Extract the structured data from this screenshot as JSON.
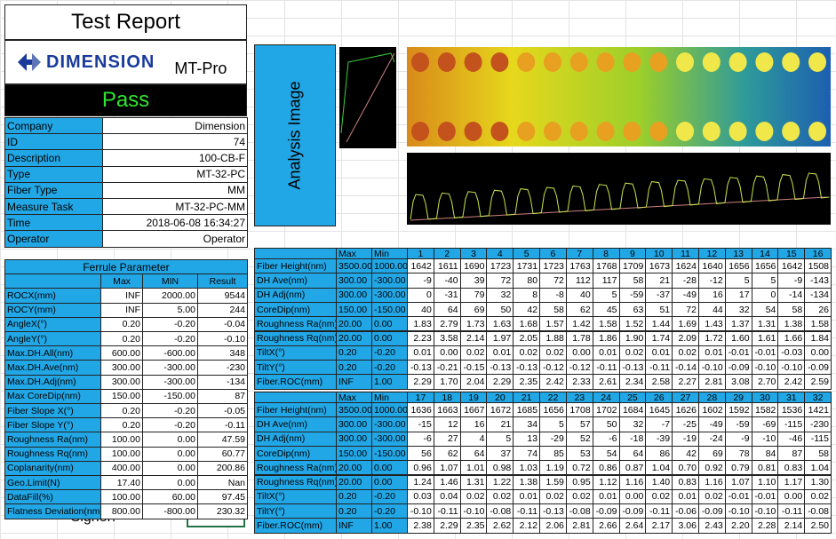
{
  "header": {
    "title": "Test Report",
    "logo": "DIMENSION",
    "model": "MT-Pro",
    "status": "Pass"
  },
  "info": [
    [
      "Company",
      "Dimension"
    ],
    [
      "ID",
      "74"
    ],
    [
      "Description",
      "100-CB-F"
    ],
    [
      "Type",
      "MT-32-PC"
    ],
    [
      "Fiber Type",
      "MM"
    ],
    [
      "Measure Task",
      "MT-32-PC-MM"
    ],
    [
      "Time",
      "2018-06-08 16:34:27"
    ],
    [
      "Operator",
      "Operator"
    ]
  ],
  "ferrule": {
    "title": "Ferrule Parameter",
    "columns": [
      "Max",
      "MIN",
      "Result"
    ],
    "rows": [
      [
        "ROCX(mm)",
        "INF",
        "2000.00",
        "9544"
      ],
      [
        "ROCY(mm)",
        "INF",
        "5.00",
        "244"
      ],
      [
        "AngleX(°)",
        "0.20",
        "-0.20",
        "-0.04"
      ],
      [
        "AngleY(°)",
        "0.20",
        "-0.20",
        "-0.10"
      ],
      [
        "Max.DH.All(nm)",
        "600.00",
        "-600.00",
        "348"
      ],
      [
        "Max.DH.Ave(nm)",
        "300.00",
        "-300.00",
        "-230"
      ],
      [
        "Max.DH.Adj(nm)",
        "300.00",
        "-300.00",
        "-134"
      ],
      [
        "Max CoreDip(nm)",
        "150.00",
        "-150.00",
        "87"
      ],
      [
        "Fiber Slope X(°)",
        "0.20",
        "-0.20",
        "-0.05"
      ],
      [
        "Fiber Slope Y(°)",
        "0.20",
        "-0.20",
        "-0.11"
      ],
      [
        "Roughness Ra(nm)",
        "100.00",
        "0.00",
        "47.59"
      ],
      [
        "Roughness Rq(nm)",
        "100.00",
        "0.00",
        "60.77"
      ],
      [
        "Coplanarity(nm)",
        "400.00",
        "0.00",
        "200.86"
      ],
      [
        "Geo.Limit(N)",
        "17.40",
        "0.00",
        "Nan"
      ],
      [
        "DataFill(%)",
        "100.00",
        "60.00",
        "97.45"
      ],
      [
        "Flatness Deviation(nm)",
        "800.00",
        "-800.00",
        "230.32"
      ]
    ]
  },
  "signer": "Signer:",
  "analysis": {
    "label": "Analysis Image"
  },
  "fiber_tables": [
    {
      "columns": [
        "Max",
        "Min",
        "1",
        "2",
        "3",
        "4",
        "5",
        "6",
        "7",
        "8",
        "9",
        "10",
        "11",
        "12",
        "13",
        "14",
        "15",
        "16"
      ],
      "rows": [
        [
          "Fiber Height(nm)",
          "3500.00",
          "1000.00",
          "1642",
          "1611",
          "1690",
          "1723",
          "1731",
          "1723",
          "1763",
          "1768",
          "1709",
          "1673",
          "1624",
          "1640",
          "1656",
          "1656",
          "1642",
          "1508"
        ],
        [
          "DH Ave(nm)",
          "300.00",
          "-300.00",
          "-9",
          "-40",
          "39",
          "72",
          "80",
          "72",
          "112",
          "117",
          "58",
          "21",
          "-28",
          "-12",
          "5",
          "5",
          "-9",
          "-143"
        ],
        [
          "DH Adj(nm)",
          "300.00",
          "-300.00",
          "0",
          "-31",
          "79",
          "32",
          "8",
          "-8",
          "40",
          "5",
          "-59",
          "-37",
          "-49",
          "16",
          "17",
          "0",
          "-14",
          "-134"
        ],
        [
          "CoreDip(nm)",
          "150.00",
          "-150.00",
          "40",
          "64",
          "69",
          "50",
          "42",
          "58",
          "62",
          "45",
          "63",
          "51",
          "72",
          "44",
          "32",
          "54",
          "58",
          "26"
        ],
        [
          "Roughness Ra(nm)",
          "20.00",
          "0.00",
          "1.83",
          "2.79",
          "1.73",
          "1.63",
          "1.68",
          "1.57",
          "1.42",
          "1.58",
          "1.52",
          "1.44",
          "1.69",
          "1.43",
          "1.37",
          "1.31",
          "1.38",
          "1.58"
        ],
        [
          "Roughness Rq(nm)",
          "20.00",
          "0.00",
          "2.23",
          "3.58",
          "2.14",
          "1.97",
          "2.05",
          "1.88",
          "1.78",
          "1.86",
          "1.90",
          "1.74",
          "2.09",
          "1.72",
          "1.60",
          "1.61",
          "1.66",
          "1.84"
        ],
        [
          "TiltX(°)",
          "0.20",
          "-0.20",
          "0.01",
          "0.00",
          "0.02",
          "0.01",
          "0.02",
          "0.02",
          "0.00",
          "0.01",
          "0.02",
          "0.01",
          "0.02",
          "0.01",
          "-0.01",
          "-0.01",
          "-0.03",
          "0.00"
        ],
        [
          "TiltY(°)",
          "0.20",
          "-0.20",
          "-0.13",
          "-0.21",
          "-0.15",
          "-0.13",
          "-0.13",
          "-0.12",
          "-0.12",
          "-0.11",
          "-0.13",
          "-0.11",
          "-0.14",
          "-0.10",
          "-0.09",
          "-0.10",
          "-0.10",
          "-0.09"
        ],
        [
          "Fiber.ROC(mm)",
          "INF",
          "1.00",
          "2.29",
          "1.70",
          "2.04",
          "2.29",
          "2.35",
          "2.42",
          "2.33",
          "2.61",
          "2.34",
          "2.58",
          "2.27",
          "2.81",
          "3.08",
          "2.70",
          "2.42",
          "2.59"
        ]
      ]
    },
    {
      "columns": [
        "Max",
        "Min",
        "17",
        "18",
        "19",
        "20",
        "21",
        "22",
        "23",
        "24",
        "25",
        "26",
        "27",
        "28",
        "29",
        "30",
        "31",
        "32"
      ],
      "rows": [
        [
          "Fiber Height(nm)",
          "3500.00",
          "1000.00",
          "1636",
          "1663",
          "1667",
          "1672",
          "1685",
          "1656",
          "1708",
          "1702",
          "1684",
          "1645",
          "1626",
          "1602",
          "1592",
          "1582",
          "1536",
          "1421"
        ],
        [
          "DH Ave(nm)",
          "300.00",
          "-300.00",
          "-15",
          "12",
          "16",
          "21",
          "34",
          "5",
          "57",
          "50",
          "32",
          "-7",
          "-25",
          "-49",
          "-59",
          "-69",
          "-115",
          "-230"
        ],
        [
          "DH Adj(nm)",
          "300.00",
          "-300.00",
          "-6",
          "27",
          "4",
          "5",
          "13",
          "-29",
          "52",
          "-6",
          "-18",
          "-39",
          "-19",
          "-24",
          "-9",
          "-10",
          "-46",
          "-115"
        ],
        [
          "CoreDip(nm)",
          "150.00",
          "-150.00",
          "56",
          "62",
          "64",
          "37",
          "74",
          "85",
          "53",
          "54",
          "64",
          "86",
          "42",
          "69",
          "78",
          "84",
          "87",
          "58"
        ],
        [
          "Roughness Ra(nm)",
          "20.00",
          "0.00",
          "0.96",
          "1.07",
          "1.01",
          "0.98",
          "1.03",
          "1.19",
          "0.72",
          "0.86",
          "0.87",
          "1.04",
          "0.70",
          "0.92",
          "0.79",
          "0.81",
          "0.83",
          "1.04"
        ],
        [
          "Roughness Rq(nm)",
          "20.00",
          "0.00",
          "1.24",
          "1.46",
          "1.31",
          "1.22",
          "1.38",
          "1.59",
          "0.95",
          "1.12",
          "1.16",
          "1.40",
          "0.83",
          "1.16",
          "1.07",
          "1.10",
          "1.17",
          "1.30"
        ],
        [
          "TiltX(°)",
          "0.20",
          "-0.20",
          "0.03",
          "0.04",
          "0.02",
          "0.02",
          "0.01",
          "0.02",
          "0.02",
          "0.01",
          "0.00",
          "0.02",
          "0.01",
          "0.02",
          "-0.01",
          "-0.01",
          "0.00",
          "0.02"
        ],
        [
          "TiltY(°)",
          "0.20",
          "-0.20",
          "-0.10",
          "-0.11",
          "-0.10",
          "-0.08",
          "-0.11",
          "-0.13",
          "-0.08",
          "-0.09",
          "-0.09",
          "-0.11",
          "-0.06",
          "-0.09",
          "-0.10",
          "-0.10",
          "-0.11",
          "-0.08"
        ],
        [
          "Fiber.ROC(mm)",
          "INF",
          "1.00",
          "2.38",
          "2.29",
          "2.35",
          "2.62",
          "2.12",
          "2.06",
          "2.81",
          "2.66",
          "2.64",
          "2.17",
          "3.06",
          "2.43",
          "2.20",
          "2.28",
          "2.14",
          "2.50"
        ]
      ]
    }
  ]
}
